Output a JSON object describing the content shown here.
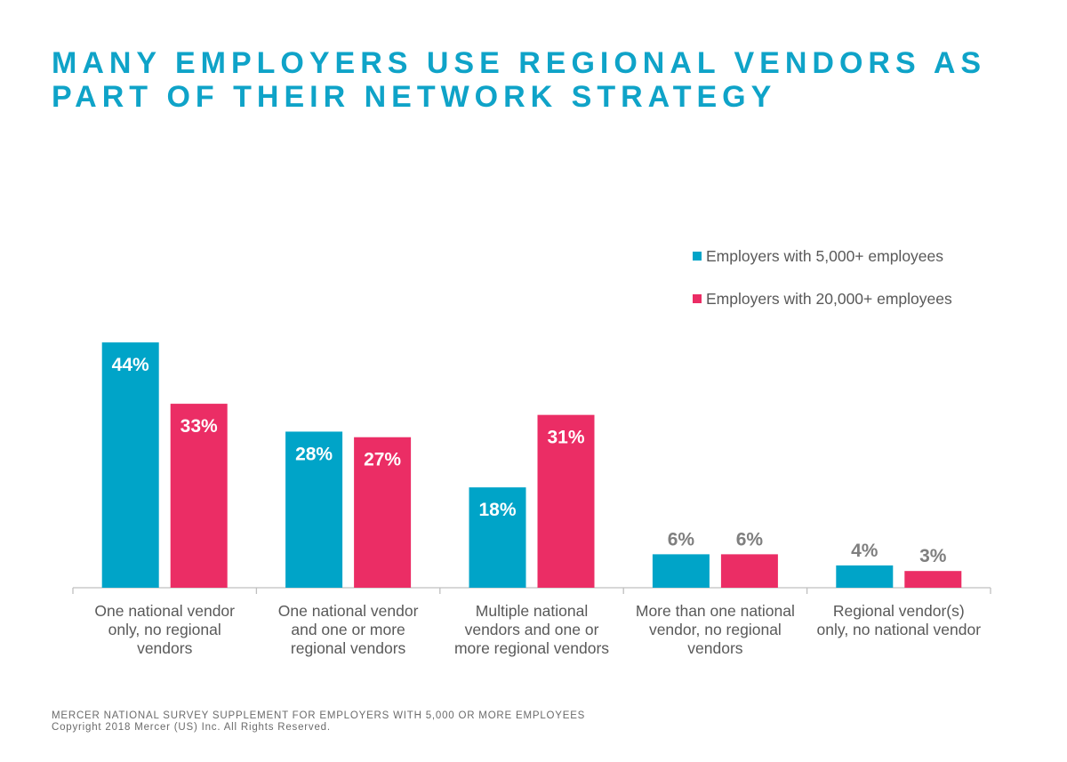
{
  "title": {
    "line1": "MANY EMPLOYERS USE REGIONAL VENDORS AS",
    "line2": "PART OF THEIR NETWORK STRATEGY"
  },
  "footer": {
    "source": "MERCER  NATIONAL SURVEY SUPPLEMENT  FOR EMPLOYERS  WITH  5,000 OR MORE  EMPLOYEES",
    "copyright": "Copyright 2018 Mercer (US) Inc. All Rights Reserved."
  },
  "chart_data": {
    "type": "bar",
    "title": "MANY EMPLOYERS USE REGIONAL VENDORS AS PART OF THEIR NETWORK STRATEGY",
    "xlabel": "",
    "ylabel": "",
    "ylim": [
      0,
      50
    ],
    "grid": false,
    "legend_position": "top-right",
    "categories": [
      [
        "One national vendor",
        "only, no regional",
        "vendors"
      ],
      [
        "One national vendor",
        "and one or more",
        "regional vendors"
      ],
      [
        "Multiple national",
        "vendors and one or",
        "more regional vendors"
      ],
      [
        "More than one national",
        "vendor, no regional",
        "vendors"
      ],
      [
        "Regional vendor(s)",
        "only, no national vendor"
      ]
    ],
    "series": [
      {
        "name": "Employers with 5,000+ employees",
        "color": "#00a4c8",
        "values": [
          44,
          28,
          18,
          6,
          4
        ],
        "labels": [
          "44%",
          "28%",
          "18%",
          "6%",
          "4%"
        ]
      },
      {
        "name": "Employers with 20,000+ employees",
        "color": "#eb2d65",
        "values": [
          33,
          27,
          31,
          6,
          3
        ],
        "labels": [
          "33%",
          "27%",
          "31%",
          "6%",
          "3%"
        ]
      }
    ]
  }
}
